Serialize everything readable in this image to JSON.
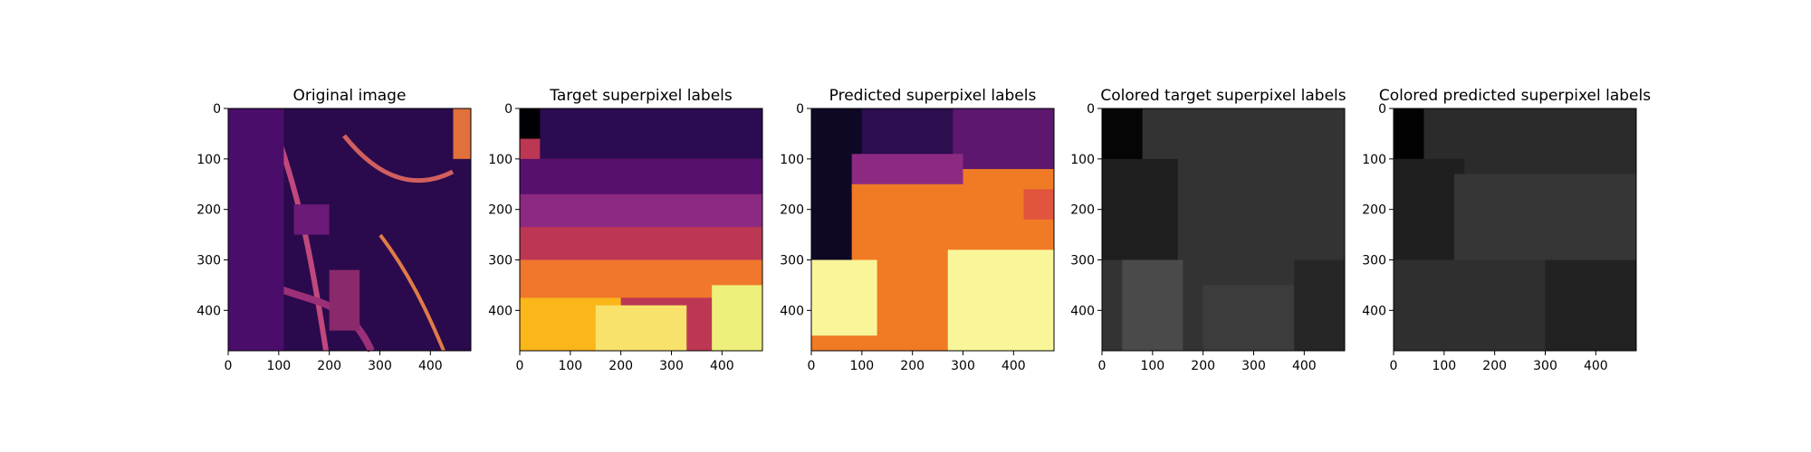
{
  "chart_data": [
    {
      "type": "heatmap",
      "title": "Original image",
      "colormap": "inferno",
      "xlim": [
        0,
        480
      ],
      "ylim": [
        480,
        0
      ],
      "xticks": [
        0,
        100,
        200,
        300,
        400
      ],
      "yticks": [
        0,
        100,
        200,
        300,
        400
      ],
      "grid": false,
      "regions": [
        {
          "fill": "#2a0a4c",
          "x": [
            0,
            480
          ],
          "y": [
            0,
            480
          ]
        },
        {
          "fill": "#4a0e6a",
          "x": [
            0,
            110
          ],
          "y": [
            0,
            480
          ]
        },
        {
          "fill": "#6b1a78",
          "x": [
            130,
            200
          ],
          "y": [
            190,
            250
          ]
        },
        {
          "fill": "#e2703a",
          "x": [
            445,
            480
          ],
          "y": [
            0,
            100
          ]
        },
        {
          "fill": "#8a2a6c",
          "x": [
            200,
            260
          ],
          "y": [
            320,
            440
          ]
        }
      ]
    },
    {
      "type": "heatmap",
      "title": "Target superpixel labels",
      "colormap": "inferno",
      "xlim": [
        0,
        480
      ],
      "ylim": [
        480,
        0
      ],
      "xticks": [
        0,
        100,
        200,
        300,
        400
      ],
      "yticks": [
        0,
        100,
        200,
        300,
        400
      ],
      "grid": false,
      "regions": [
        {
          "fill": "#000004",
          "x": [
            0,
            480
          ],
          "y": [
            0,
            60
          ]
        },
        {
          "fill": "#2b0b52",
          "x": [
            40,
            480
          ],
          "y": [
            0,
            100
          ]
        },
        {
          "fill": "#57106e",
          "x": [
            0,
            480
          ],
          "y": [
            100,
            170
          ]
        },
        {
          "fill": "#8c2981",
          "x": [
            0,
            480
          ],
          "y": [
            170,
            235
          ]
        },
        {
          "fill": "#bc3754",
          "x": [
            0,
            480
          ],
          "y": [
            235,
            300
          ]
        },
        {
          "fill": "#f0772b",
          "x": [
            0,
            480
          ],
          "y": [
            300,
            375
          ]
        },
        {
          "fill": "#fbb61a",
          "x": [
            0,
            200
          ],
          "y": [
            375,
            480
          ]
        },
        {
          "fill": "#f8e26b",
          "x": [
            150,
            330
          ],
          "y": [
            390,
            480
          ]
        },
        {
          "fill": "#edf07a",
          "x": [
            380,
            480
          ],
          "y": [
            350,
            480
          ]
        }
      ]
    },
    {
      "type": "heatmap",
      "title": "Predicted superpixel labels",
      "colormap": "inferno",
      "xlim": [
        0,
        480
      ],
      "ylim": [
        480,
        0
      ],
      "xticks": [
        0,
        100,
        200,
        300,
        400
      ],
      "yticks": [
        0,
        100,
        200,
        300,
        400
      ],
      "grid": false,
      "regions": [
        {
          "fill": "#0e0824",
          "x": [
            0,
            150
          ],
          "y": [
            0,
            300
          ]
        },
        {
          "fill": "#2c0e4f",
          "x": [
            100,
            300
          ],
          "y": [
            0,
            110
          ]
        },
        {
          "fill": "#5d176e",
          "x": [
            280,
            480
          ],
          "y": [
            0,
            120
          ]
        },
        {
          "fill": "#8c2981",
          "x": [
            80,
            300
          ],
          "y": [
            90,
            170
          ]
        },
        {
          "fill": "#f07b24",
          "x": [
            80,
            480
          ],
          "y": [
            150,
            480
          ]
        },
        {
          "fill": "#f9f69a",
          "x": [
            0,
            130
          ],
          "y": [
            300,
            450
          ]
        },
        {
          "fill": "#f9f69a",
          "x": [
            270,
            480
          ],
          "y": [
            280,
            480
          ]
        },
        {
          "fill": "#e1543e",
          "x": [
            420,
            480
          ],
          "y": [
            160,
            220
          ]
        }
      ]
    },
    {
      "type": "heatmap",
      "title": "Colored target superpixel labels",
      "colormap": "gray",
      "xlim": [
        0,
        480
      ],
      "ylim": [
        480,
        0
      ],
      "xticks": [
        0,
        100,
        200,
        300,
        400
      ],
      "yticks": [
        0,
        100,
        200,
        300,
        400
      ],
      "grid": false,
      "regions": [
        {
          "fill": "#333333",
          "x": [
            0,
            480
          ],
          "y": [
            0,
            480
          ]
        },
        {
          "fill": "#050505",
          "x": [
            0,
            80
          ],
          "y": [
            0,
            130
          ]
        },
        {
          "fill": "#1e1e1e",
          "x": [
            0,
            150
          ],
          "y": [
            100,
            300
          ]
        },
        {
          "fill": "#4a4a4a",
          "x": [
            40,
            160
          ],
          "y": [
            300,
            480
          ]
        },
        {
          "fill": "#262626",
          "x": [
            380,
            480
          ],
          "y": [
            300,
            480
          ]
        },
        {
          "fill": "#3c3c3c",
          "x": [
            200,
            380
          ],
          "y": [
            350,
            480
          ]
        }
      ]
    },
    {
      "type": "heatmap",
      "title": "Colored predicted superpixel labels",
      "colormap": "gray",
      "xlim": [
        0,
        480
      ],
      "ylim": [
        480,
        0
      ],
      "xticks": [
        0,
        100,
        200,
        300,
        400
      ],
      "yticks": [
        0,
        100,
        200,
        300,
        400
      ],
      "grid": false,
      "regions": [
        {
          "fill": "#2b2b2b",
          "x": [
            0,
            480
          ],
          "y": [
            0,
            480
          ]
        },
        {
          "fill": "#020202",
          "x": [
            0,
            60
          ],
          "y": [
            0,
            130
          ]
        },
        {
          "fill": "#1f1f1f",
          "x": [
            0,
            140
          ],
          "y": [
            100,
            300
          ]
        },
        {
          "fill": "#363636",
          "x": [
            120,
            480
          ],
          "y": [
            130,
            300
          ]
        },
        {
          "fill": "#2f2f2f",
          "x": [
            0,
            480
          ],
          "y": [
            300,
            480
          ]
        },
        {
          "fill": "#222222",
          "x": [
            300,
            480
          ],
          "y": [
            300,
            480
          ]
        }
      ]
    }
  ]
}
